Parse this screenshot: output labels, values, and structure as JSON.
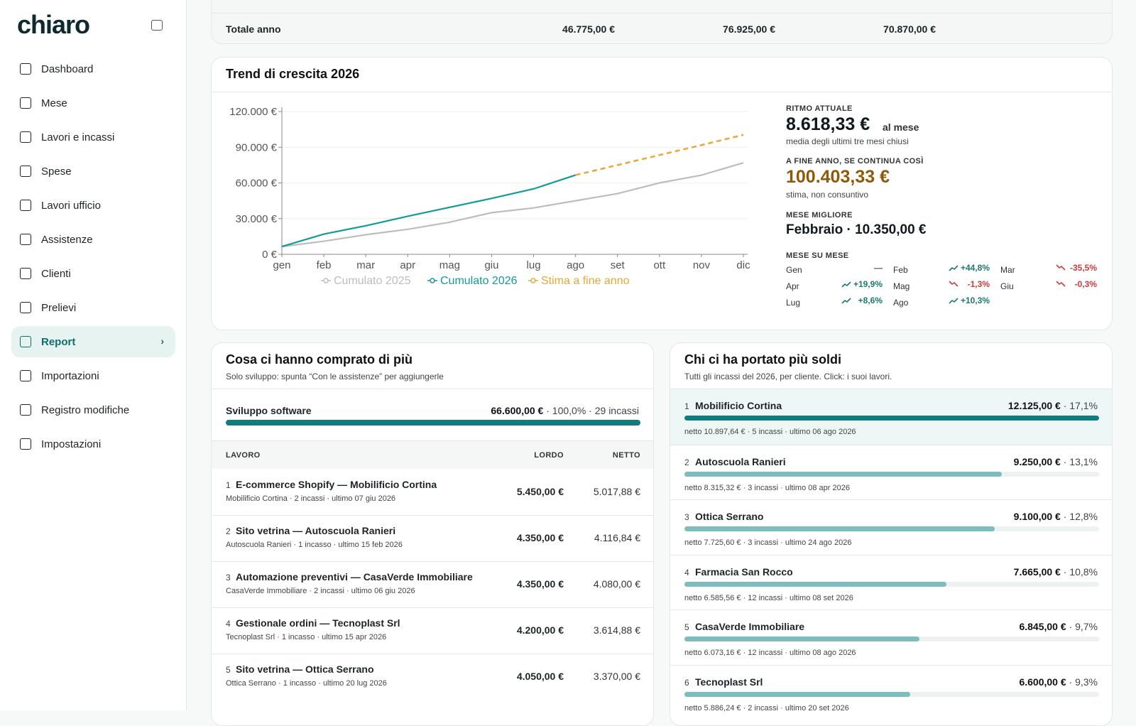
{
  "brand": "chiaro",
  "nav": [
    {
      "label": "Dashboard"
    },
    {
      "label": "Mese"
    },
    {
      "label": "Lavori e incassi"
    },
    {
      "label": "Spese"
    },
    {
      "label": "Lavori ufficio"
    },
    {
      "label": "Assistenze"
    },
    {
      "label": "Clienti"
    },
    {
      "label": "Prelievi"
    },
    {
      "label": "Report",
      "active": true
    },
    {
      "label": "Importazioni"
    },
    {
      "label": "Registro modifiche"
    },
    {
      "label": "Impostazioni"
    }
  ],
  "totals": {
    "label": "Totale anno",
    "values": [
      "46.775,00 €",
      "76.925,00 €",
      "70.870,00 €"
    ]
  },
  "trend": {
    "title": "Trend di crescita 2026",
    "chart_data": {
      "type": "line",
      "categories": [
        "gen",
        "feb",
        "mar",
        "apr",
        "mag",
        "giu",
        "lug",
        "ago",
        "set",
        "ott",
        "nov",
        "dic"
      ],
      "ylim": [
        0,
        120000
      ],
      "yticks": [
        {
          "value": 0,
          "label": "0 €"
        },
        {
          "value": 30000,
          "label": "30.000 €"
        },
        {
          "value": 60000,
          "label": "60.000 €"
        },
        {
          "value": 90000,
          "label": "90.000 €"
        },
        {
          "value": 120000,
          "label": "120.000 €"
        }
      ],
      "grid": true,
      "legend": "bottom",
      "series": [
        {
          "name": "Cumulato 2025",
          "color": "#bdbdbd",
          "values": [
            6500,
            11000,
            16500,
            21000,
            27000,
            35000,
            39000,
            45000,
            51000,
            60000,
            66500,
            76925
          ]
        },
        {
          "name": "Cumulato 2026",
          "color": "#139a9a",
          "values": [
            6500,
            17000,
            24000,
            32000,
            39500,
            47000,
            55000,
            66600,
            null,
            null,
            null,
            null
          ]
        },
        {
          "name": "Stima a fine anno",
          "color": "#e8a838",
          "dashed": true,
          "values": [
            null,
            null,
            null,
            null,
            null,
            null,
            null,
            66600,
            75000,
            83400,
            91800,
            100403
          ]
        }
      ]
    },
    "stats": {
      "pace_label": "RITMO ATTUALE",
      "pace_value": "8.618,33 €",
      "pace_unit": "al mese",
      "pace_note": "media degli ultimi tre mesi chiusi",
      "forecast_label": "A FINE ANNO, SE CONTINUA COSÌ",
      "forecast_value": "100.403,33 €",
      "forecast_note": "stima, non consuntivo",
      "best_label": "MESE MIGLIORE",
      "best_value": "Febbraio · 10.350,00 €",
      "mom_label": "MESE SU MESE",
      "mom": [
        {
          "month": "Gen",
          "change": "—"
        },
        {
          "month": "Feb",
          "change": "+44,8%",
          "trend": "up"
        },
        {
          "month": "Mar",
          "change": "-35,5%",
          "trend": "down"
        },
        {
          "month": "Apr",
          "change": "+19,9%",
          "trend": "up"
        },
        {
          "month": "Mag",
          "change": "-1,3%",
          "trend": "down"
        },
        {
          "month": "Giu",
          "change": "-0,3%",
          "trend": "down"
        },
        {
          "month": "Lug",
          "change": "+8,6%",
          "trend": "up"
        },
        {
          "month": "Ago",
          "change": "+10,3%",
          "trend": "up"
        }
      ]
    }
  },
  "products": {
    "title": "Cosa ci hanno comprato di più",
    "subtitle": "Solo sviluppo: spunta “Con le assistenze” per aggiungerle",
    "category": {
      "name": "Sviluppo software",
      "amount": "66.600,00 €",
      "share": 100.0,
      "share_label": "100,0%",
      "count": "29 incassi"
    },
    "columns": [
      "LAVORO",
      "LORDO",
      "NETTO"
    ],
    "rows": [
      {
        "rank": "1",
        "name": "E-commerce Shopify — Mobilificio Cortina",
        "meta": "Mobilificio Cortina · 2 incassi · ultimo 07 giu 2026",
        "gross": "5.450,00 €",
        "net": "5.017,88 €"
      },
      {
        "rank": "2",
        "name": "Sito vetrina — Autoscuola Ranieri",
        "meta": "Autoscuola Ranieri · 1 incasso · ultimo 15 feb 2026",
        "gross": "4.350,00 €",
        "net": "4.116,84 €"
      },
      {
        "rank": "3",
        "name": "Automazione preventivi — CasaVerde Immobiliare",
        "meta": "CasaVerde Immobiliare · 2 incassi · ultimo 06 giu 2026",
        "gross": "4.350,00 €",
        "net": "4.080,00 €"
      },
      {
        "rank": "4",
        "name": "Gestionale ordini — Tecnoplast Srl",
        "meta": "Tecnoplast Srl · 1 incasso · ultimo 15 apr 2026",
        "gross": "4.200,00 €",
        "net": "3.614,88 €"
      },
      {
        "rank": "5",
        "name": "Sito vetrina — Ottica Serrano",
        "meta": "Ottica Serrano · 1 incasso · ultimo 20 lug 2026",
        "gross": "4.050,00 €",
        "net": "3.370,00 €"
      }
    ]
  },
  "clients": {
    "title": "Chi ci ha portato più soldi",
    "subtitle": "Tutti gli incassi del 2026, per cliente. Click: i suoi lavori.",
    "rows": [
      {
        "rank": "1",
        "name": "Mobilificio Cortina",
        "amount": "12.125,00 €",
        "share": 17.1,
        "share_label": "17,1%",
        "meta": "netto 10.897,64 € · 5 incassi · ultimo 06 ago 2026",
        "selected": true
      },
      {
        "rank": "2",
        "name": "Autoscuola Ranieri",
        "amount": "9.250,00 €",
        "share": 13.1,
        "share_label": "13,1%",
        "meta": "netto 8.315,32 € · 3 incassi · ultimo 08 apr 2026"
      },
      {
        "rank": "3",
        "name": "Ottica Serrano",
        "amount": "9.100,00 €",
        "share": 12.8,
        "share_label": "12,8%",
        "meta": "netto 7.725,60 € · 3 incassi · ultimo 24 ago 2026"
      },
      {
        "rank": "4",
        "name": "Farmacia San Rocco",
        "amount": "7.665,00 €",
        "share": 10.8,
        "share_label": "10,8%",
        "meta": "netto 6.585,56 € · 12 incassi · ultimo 08 set 2026"
      },
      {
        "rank": "5",
        "name": "CasaVerde Immobiliare",
        "amount": "6.845,00 €",
        "share": 9.7,
        "share_label": "9,7%",
        "meta": "netto 6.073,16 € · 12 incassi · ultimo 08 ago 2026"
      },
      {
        "rank": "6",
        "name": "Tecnoplast Srl",
        "amount": "6.600,00 €",
        "share": 9.3,
        "share_label": "9,3%",
        "meta": "netto 5.886,24 € · 2 incassi · ultimo 20 set 2026"
      }
    ]
  }
}
